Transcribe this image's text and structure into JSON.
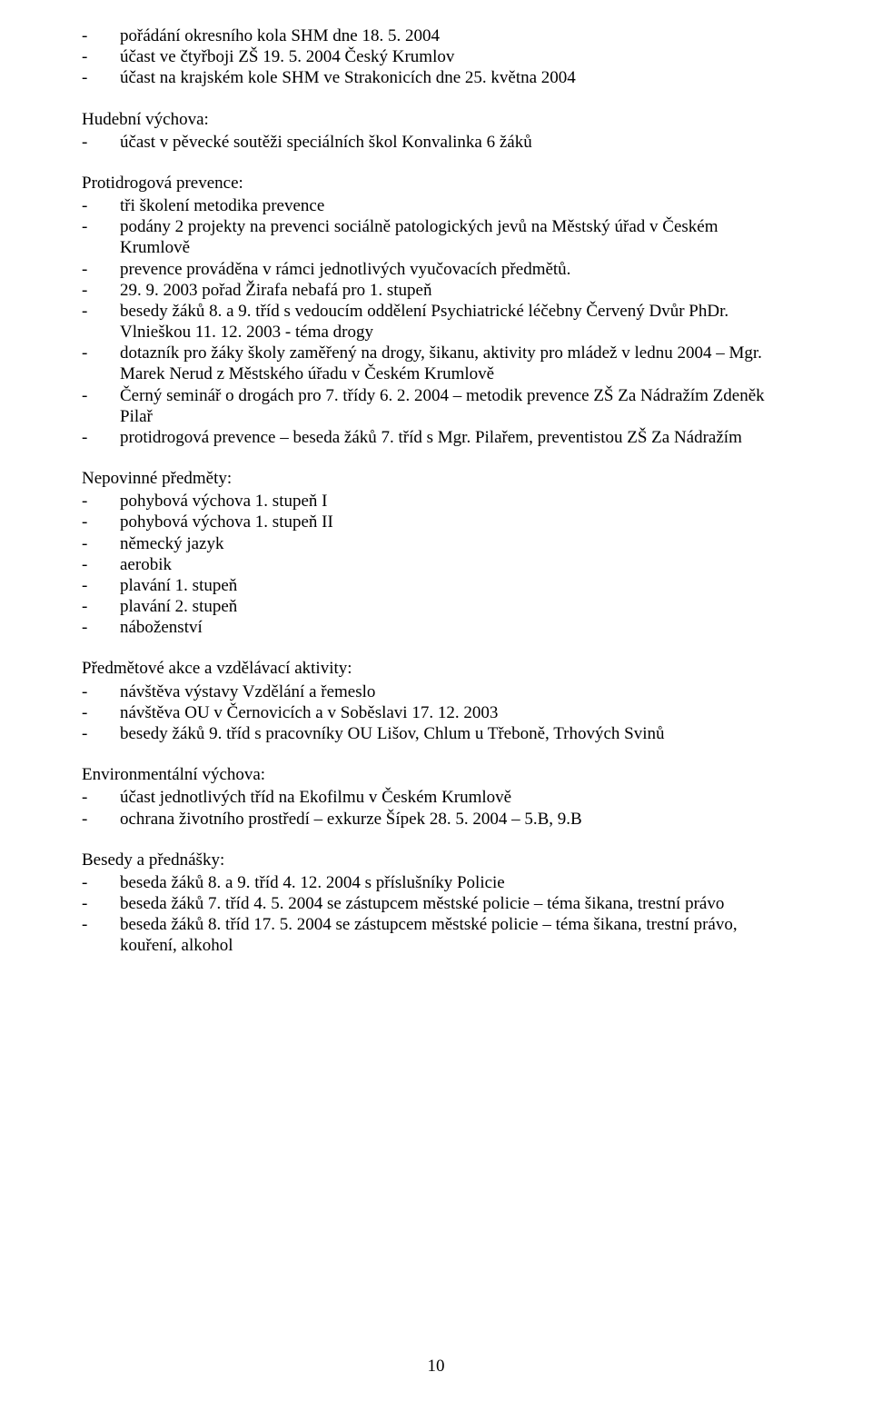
{
  "intro_items": [
    "pořádání okresního kola SHM dne 18. 5. 2004",
    "účast ve čtyřboji ZŠ 19. 5. 2004 Český Krumlov",
    "účast na krajském kole SHM ve Strakonicích dne 25. května 2004"
  ],
  "hudebni": {
    "title": "Hudební výchova:",
    "items": [
      "účast v pěvecké soutěži speciálních škol Konvalinka 6 žáků"
    ]
  },
  "protidrog": {
    "title": "Protidrogová prevence:",
    "items": [
      "tři školení metodika prevence",
      "podány  2 projekty na prevenci sociálně patologických jevů na Městský úřad v Českém Krumlově",
      "prevence prováděna v rámci jednotlivých vyučovacích předmětů.",
      "29. 9. 2003 pořad Žirafa nebafá pro 1. stupeň",
      "besedy žáků 8. a 9. tříd s vedoucím oddělení Psychiatrické léčebny Červený Dvůr PhDr. Vlnieškou 11. 12. 2003 -  téma drogy",
      "dotazník pro žáky školy zaměřený na drogy, šikanu, aktivity pro mládež v lednu 2004 – Mgr. Marek Nerud z Městského úřadu v Českém Krumlově",
      "Černý seminář o drogách pro 7. třídy 6. 2. 2004 – metodik prevence ZŠ Za Nádražím Zdeněk Pilař",
      "protidrogová prevence – beseda žáků 7. tříd s Mgr. Pilařem, preventistou ZŠ Za Nádražím"
    ]
  },
  "nepovinne": {
    "title": "Nepovinné předměty:",
    "items": [
      "pohybová výchova 1. stupeň I",
      "pohybová výchova 1. stupeň II",
      "německý jazyk",
      "aerobik",
      "plavání 1. stupeň",
      "plavání 2. stupeň",
      "náboženství"
    ]
  },
  "predmetove": {
    "title": "Předmětové akce a vzdělávací aktivity:",
    "items": [
      "návštěva výstavy Vzdělání a řemeslo",
      "návštěva OU v Černovicích a v Soběslavi 17. 12. 2003",
      "besedy žáků 9. tříd s pracovníky OU Lišov, Chlum u Třeboně, Trhových Svinů"
    ]
  },
  "enviro": {
    "title": "Environmentální výchova:",
    "items": [
      "účast jednotlivých tříd na Ekofilmu v Českém Krumlově",
      "ochrana životního prostředí – exkurze Šípek 28. 5. 2004 – 5.B, 9.B"
    ]
  },
  "besedy": {
    "title": "Besedy a přednášky:",
    "items": [
      "beseda žáků 8. a 9. tříd  4. 12. 2004  s příslušníky  Policie",
      "beseda žáků 7. tříd 4. 5. 2004 se zástupcem městské policie – téma šikana, trestní právo",
      "beseda žáků 8. tříd 17. 5. 2004 se zástupcem městské policie – téma šikana, trestní právo, kouření, alkohol"
    ]
  },
  "page_number": "10"
}
